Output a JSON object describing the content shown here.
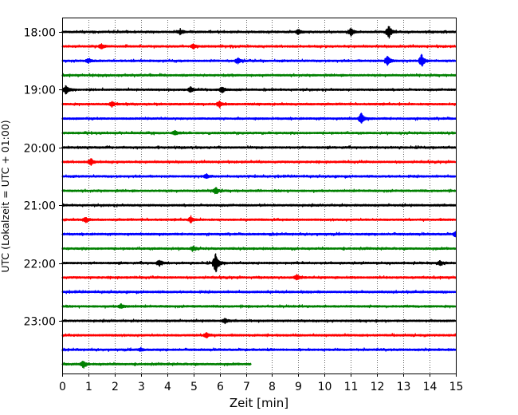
{
  "chart_data": {
    "type": "line",
    "title": "",
    "xlabel": "Zeit  [min]",
    "ylabel": "UTC (Lokalzeit = UTC + 01:00)",
    "xlim": [
      0,
      15
    ],
    "x_ticks": [
      "0",
      "1",
      "2",
      "3",
      "4",
      "5",
      "6",
      "7",
      "8",
      "9",
      "10",
      "11",
      "12",
      "13",
      "14",
      "15"
    ],
    "y_tick_labels": [
      "18:00",
      "19:00",
      "20:00",
      "21:00",
      "22:00",
      "23:00"
    ],
    "grid": "vertical dotted lines at each minute",
    "trace_interval_min": 15,
    "trace_color_cycle": [
      "#000000",
      "#ff0000",
      "#0000ff",
      "#008000"
    ],
    "series": [
      {
        "start": "18:00",
        "duration_min": 15,
        "events": [
          {
            "t": 4.5,
            "amp": 0.3
          },
          {
            "t": 9.0,
            "amp": 0.35
          },
          {
            "t": 11.0,
            "amp": 0.55
          },
          {
            "t": 12.45,
            "amp": 0.9
          }
        ]
      },
      {
        "start": "18:15",
        "duration_min": 15,
        "events": [
          {
            "t": 1.5,
            "amp": 0.3
          },
          {
            "t": 5.0,
            "amp": 0.3
          }
        ]
      },
      {
        "start": "18:30",
        "duration_min": 15,
        "events": [
          {
            "t": 1.0,
            "amp": 0.3
          },
          {
            "t": 6.7,
            "amp": 0.35
          },
          {
            "t": 12.4,
            "amp": 0.8
          },
          {
            "t": 13.7,
            "amp": 0.9
          }
        ]
      },
      {
        "start": "18:45",
        "duration_min": 15,
        "events": []
      },
      {
        "start": "19:00",
        "duration_min": 15,
        "events": [
          {
            "t": 0.15,
            "amp": 0.6
          },
          {
            "t": 4.9,
            "amp": 0.35
          },
          {
            "t": 6.1,
            "amp": 0.4
          }
        ]
      },
      {
        "start": "19:15",
        "duration_min": 15,
        "events": [
          {
            "t": 1.9,
            "amp": 0.35
          },
          {
            "t": 6.0,
            "amp": 0.35
          }
        ]
      },
      {
        "start": "19:30",
        "duration_min": 15,
        "events": [
          {
            "t": 11.4,
            "amp": 0.75
          }
        ]
      },
      {
        "start": "19:45",
        "duration_min": 15,
        "events": [
          {
            "t": 4.3,
            "amp": 0.3
          }
        ]
      },
      {
        "start": "20:00",
        "duration_min": 15,
        "events": []
      },
      {
        "start": "20:15",
        "duration_min": 15,
        "events": [
          {
            "t": 1.1,
            "amp": 0.45
          }
        ]
      },
      {
        "start": "20:30",
        "duration_min": 15,
        "events": [
          {
            "t": 5.5,
            "amp": 0.3
          }
        ]
      },
      {
        "start": "20:45",
        "duration_min": 15,
        "events": [
          {
            "t": 5.85,
            "amp": 0.5
          }
        ]
      },
      {
        "start": "21:00",
        "duration_min": 15,
        "events": []
      },
      {
        "start": "21:15",
        "duration_min": 15,
        "events": [
          {
            "t": 0.9,
            "amp": 0.35
          },
          {
            "t": 4.9,
            "amp": 0.4
          }
        ]
      },
      {
        "start": "21:30",
        "duration_min": 15,
        "events": [
          {
            "t": 15.0,
            "amp": 0.35
          }
        ]
      },
      {
        "start": "21:45",
        "duration_min": 15,
        "events": [
          {
            "t": 5.0,
            "amp": 0.3
          }
        ]
      },
      {
        "start": "22:00",
        "duration_min": 15,
        "events": [
          {
            "t": 3.7,
            "amp": 0.45
          },
          {
            "t": 5.85,
            "amp": 1.6
          },
          {
            "t": 14.4,
            "amp": 0.3
          }
        ]
      },
      {
        "start": "22:15",
        "duration_min": 15,
        "events": [
          {
            "t": 8.95,
            "amp": 0.4
          }
        ]
      },
      {
        "start": "22:30",
        "duration_min": 15,
        "events": []
      },
      {
        "start": "22:45",
        "duration_min": 15,
        "events": [
          {
            "t": 2.25,
            "amp": 0.3
          }
        ]
      },
      {
        "start": "23:00",
        "duration_min": 15,
        "events": [
          {
            "t": 6.2,
            "amp": 0.3
          }
        ]
      },
      {
        "start": "23:15",
        "duration_min": 15,
        "events": [
          {
            "t": 5.5,
            "amp": 0.4
          }
        ]
      },
      {
        "start": "23:30",
        "duration_min": 15,
        "events": [
          {
            "t": 3.0,
            "amp": 0.2
          }
        ]
      },
      {
        "start": "23:45",
        "duration_min": 7.2,
        "events": [
          {
            "t": 0.8,
            "amp": 0.45
          }
        ]
      }
    ]
  }
}
